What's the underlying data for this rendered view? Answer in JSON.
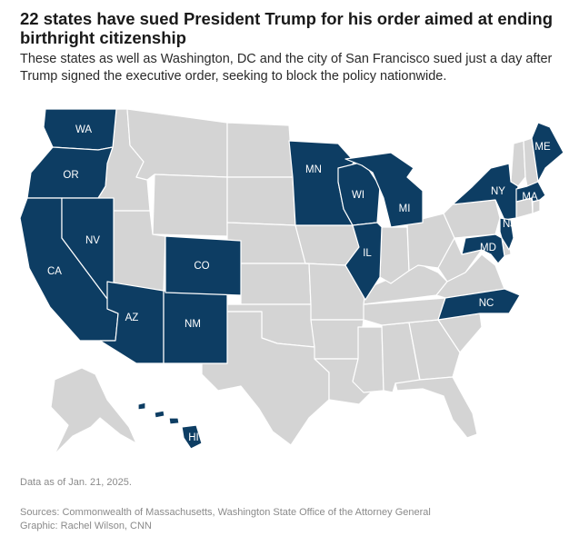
{
  "header": {
    "title": "22 states have sued President Trump for his order aimed at ending birthright citizenship",
    "subtitle": "These states as well as Washington, DC and the city of San Francisco sued just a day after Trump signed the executive order, seeking to block the policy nationwide."
  },
  "map": {
    "colors": {
      "sued": "#0d3d63",
      "other": "#d4d4d4",
      "border": "#ffffff",
      "label_on_sued": "#ffffff",
      "label_on_other": "#0d3d63"
    },
    "labels": {
      "WA": "WA",
      "OR": "OR",
      "CA": "CA",
      "NV": "NV",
      "AZ": "AZ",
      "NM": "NM",
      "CO": "CO",
      "MN": "MN",
      "WI": "WI",
      "MI": "MI",
      "IL": "IL",
      "NY": "NY",
      "ME": "ME",
      "MA": "MA",
      "NJ": "NJ",
      "MD": "MD",
      "NC": "NC",
      "HI": "HI"
    }
  },
  "footer": {
    "data_note": "Data as of Jan. 21, 2025.",
    "sources": "Sources: Commonwealth of Massachusetts, Washington State Office of the Attorney General",
    "graphic": "Graphic: Rachel Wilson, CNN"
  }
}
